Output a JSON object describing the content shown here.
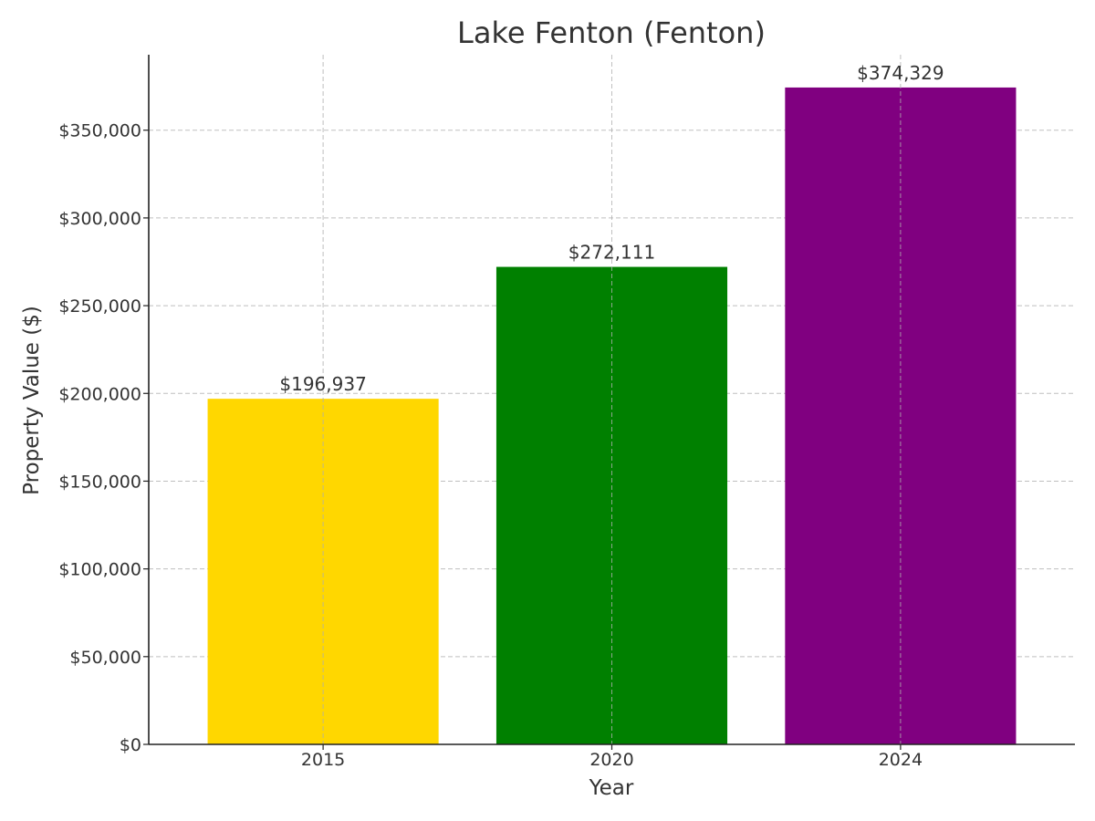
{
  "chart_data": {
    "type": "bar",
    "title": "Lake Fenton (Fenton)",
    "xlabel": "Year",
    "ylabel": "Property Value ($)",
    "categories": [
      "2015",
      "2020",
      "2024"
    ],
    "values": [
      196937,
      272111,
      374329
    ],
    "value_labels": [
      "$196,937",
      "$272,111",
      "$374,329"
    ],
    "colors": [
      "#FFD700",
      "#008000",
      "#800080"
    ],
    "ylim": [
      0,
      393000
    ],
    "yticks": [
      0,
      50000,
      100000,
      150000,
      200000,
      250000,
      300000,
      350000
    ],
    "ytick_labels": [
      "$0",
      "$50,000",
      "$100,000",
      "$150,000",
      "$200,000",
      "$250,000",
      "$300,000",
      "$350,000"
    ],
    "grid": true,
    "legend": "none"
  }
}
